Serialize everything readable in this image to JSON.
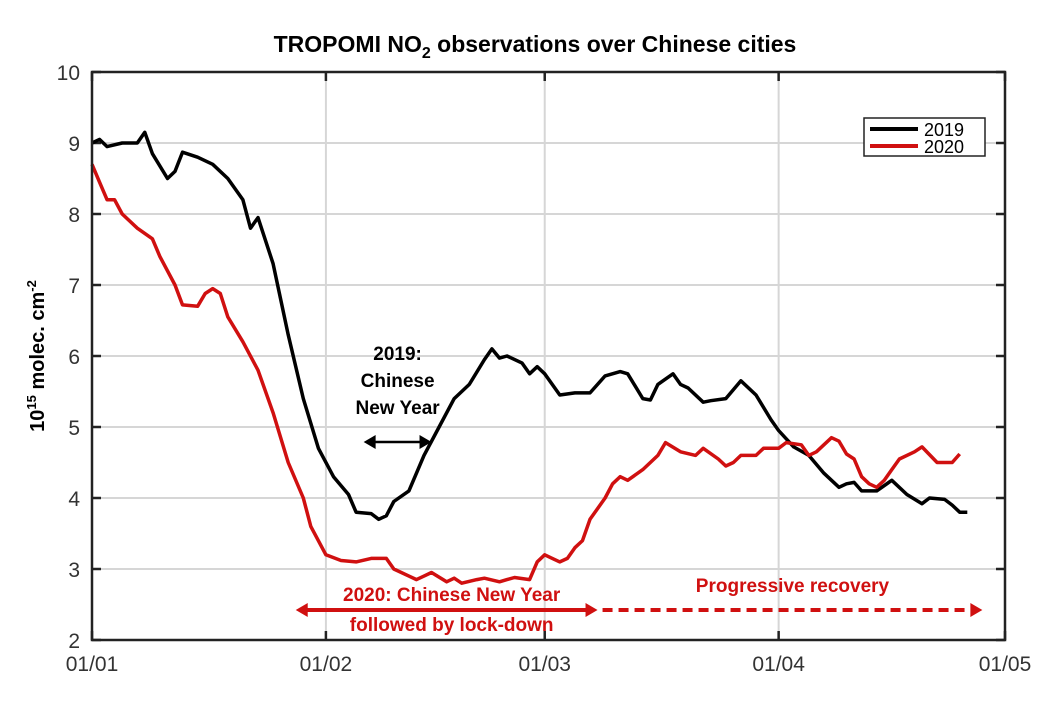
{
  "chart_data": {
    "type": "line",
    "title": "TROPOMI NO",
    "title_sub": "2",
    "title_rest": " observations over Chinese cities",
    "ylabel_base": "10",
    "ylabel_exp": "15",
    "ylabel_mid": " molec. cm",
    "ylabel_exp2": "-2",
    "xlabel": "",
    "ylim": [
      2,
      10
    ],
    "yticks": [
      "2",
      "3",
      "4",
      "5",
      "6",
      "7",
      "8",
      "9",
      "10"
    ],
    "xticks": [
      "01/01",
      "01/02",
      "01/03",
      "01/04",
      "01/05"
    ],
    "grid": true,
    "legend_placement": "top-right",
    "series": [
      {
        "name": "2019",
        "color": "#000000",
        "points": [
          [
            "01/01",
            9.0
          ],
          [
            "02/01",
            9.05
          ],
          [
            "03/01",
            8.95
          ],
          [
            "05/01",
            9.0
          ],
          [
            "07/01",
            9.0
          ],
          [
            "08/01",
            9.15
          ],
          [
            "09/01",
            8.85
          ],
          [
            "11/01",
            8.5
          ],
          [
            "12/01",
            8.6
          ],
          [
            "13/01",
            8.87
          ],
          [
            "15/01",
            8.8
          ],
          [
            "17/01",
            8.7
          ],
          [
            "19/01",
            8.5
          ],
          [
            "21/01",
            8.2
          ],
          [
            "22/01",
            7.8
          ],
          [
            "23/01",
            7.95
          ],
          [
            "25/01",
            7.3
          ],
          [
            "27/01",
            6.3
          ],
          [
            "29/01",
            5.4
          ],
          [
            "31/01",
            4.7
          ],
          [
            "02/02",
            4.3
          ],
          [
            "04/02",
            4.05
          ],
          [
            "05/02",
            3.8
          ],
          [
            "07/02",
            3.78
          ],
          [
            "08/02",
            3.7
          ],
          [
            "09/02",
            3.75
          ],
          [
            "10/02",
            3.95
          ],
          [
            "12/02",
            4.1
          ],
          [
            "14/02",
            4.6
          ],
          [
            "16/02",
            5.0
          ],
          [
            "18/02",
            5.4
          ],
          [
            "20/02",
            5.6
          ],
          [
            "22/02",
            5.95
          ],
          [
            "23/02",
            6.1
          ],
          [
            "24/02",
            5.97
          ],
          [
            "25/02",
            6.0
          ],
          [
            "27/02",
            5.9
          ],
          [
            "28/02",
            5.75
          ],
          [
            "29/02",
            5.85
          ],
          [
            "01/03",
            5.75
          ],
          [
            "03/03",
            5.45
          ],
          [
            "05/03",
            5.48
          ],
          [
            "07/03",
            5.48
          ],
          [
            "09/03",
            5.72
          ],
          [
            "11/03",
            5.78
          ],
          [
            "12/03",
            5.75
          ],
          [
            "14/03",
            5.4
          ],
          [
            "15/03",
            5.38
          ],
          [
            "16/03",
            5.6
          ],
          [
            "18/03",
            5.75
          ],
          [
            "19/03",
            5.6
          ],
          [
            "20/03",
            5.55
          ],
          [
            "22/03",
            5.35
          ],
          [
            "23/03",
            5.37
          ],
          [
            "25/03",
            5.4
          ],
          [
            "27/03",
            5.65
          ],
          [
            "29/03",
            5.45
          ],
          [
            "31/03",
            5.1
          ],
          [
            "01/04",
            4.95
          ],
          [
            "03/04",
            4.72
          ],
          [
            "05/04",
            4.6
          ],
          [
            "07/04",
            4.35
          ],
          [
            "09/04",
            4.15
          ],
          [
            "10/04",
            4.2
          ],
          [
            "11/04",
            4.22
          ],
          [
            "12/04",
            4.1
          ],
          [
            "14/04",
            4.1
          ],
          [
            "16/04",
            4.25
          ],
          [
            "18/04",
            4.05
          ],
          [
            "20/04",
            3.92
          ],
          [
            "21/04",
            4.0
          ],
          [
            "23/04",
            3.98
          ],
          [
            "24/04",
            3.9
          ],
          [
            "25/04",
            3.8
          ],
          [
            "26/04",
            3.8
          ]
        ]
      },
      {
        "name": "2020",
        "color": "#d01010",
        "points": [
          [
            "01/01",
            8.7
          ],
          [
            "02/01",
            8.45
          ],
          [
            "03/01",
            8.2
          ],
          [
            "04/01",
            8.2
          ],
          [
            "05/01",
            8.0
          ],
          [
            "07/01",
            7.8
          ],
          [
            "09/01",
            7.65
          ],
          [
            "10/01",
            7.4
          ],
          [
            "12/01",
            7.0
          ],
          [
            "13/01",
            6.72
          ],
          [
            "15/01",
            6.7
          ],
          [
            "16/01",
            6.88
          ],
          [
            "17/01",
            6.95
          ],
          [
            "18/01",
            6.88
          ],
          [
            "19/01",
            6.55
          ],
          [
            "21/01",
            6.2
          ],
          [
            "23/01",
            5.8
          ],
          [
            "25/01",
            5.2
          ],
          [
            "27/01",
            4.5
          ],
          [
            "29/01",
            4.0
          ],
          [
            "30/01",
            3.6
          ],
          [
            "01/02",
            3.2
          ],
          [
            "03/02",
            3.12
          ],
          [
            "05/02",
            3.1
          ],
          [
            "07/02",
            3.15
          ],
          [
            "09/02",
            3.15
          ],
          [
            "10/02",
            3.0
          ],
          [
            "12/02",
            2.9
          ],
          [
            "13/02",
            2.85
          ],
          [
            "14/02",
            2.9
          ],
          [
            "15/02",
            2.95
          ],
          [
            "17/02",
            2.82
          ],
          [
            "18/02",
            2.87
          ],
          [
            "19/02",
            2.8
          ],
          [
            "21/02",
            2.85
          ],
          [
            "22/02",
            2.87
          ],
          [
            "24/02",
            2.82
          ],
          [
            "25/02",
            2.85
          ],
          [
            "26/02",
            2.88
          ],
          [
            "28/02",
            2.85
          ],
          [
            "29/02",
            3.1
          ],
          [
            "01/03",
            3.2
          ],
          [
            "02/03",
            3.15
          ],
          [
            "03/03",
            3.1
          ],
          [
            "04/03",
            3.15
          ],
          [
            "05/03",
            3.3
          ],
          [
            "06/03",
            3.4
          ],
          [
            "07/03",
            3.7
          ],
          [
            "09/03",
            4.0
          ],
          [
            "10/03",
            4.2
          ],
          [
            "11/03",
            4.3
          ],
          [
            "12/03",
            4.25
          ],
          [
            "14/03",
            4.4
          ],
          [
            "16/03",
            4.6
          ],
          [
            "17/03",
            4.78
          ],
          [
            "19/03",
            4.65
          ],
          [
            "21/03",
            4.6
          ],
          [
            "22/03",
            4.7
          ],
          [
            "24/03",
            4.55
          ],
          [
            "25/03",
            4.45
          ],
          [
            "26/03",
            4.5
          ],
          [
            "27/03",
            4.6
          ],
          [
            "29/03",
            4.6
          ],
          [
            "30/03",
            4.7
          ],
          [
            "01/04",
            4.7
          ],
          [
            "02/04",
            4.78
          ],
          [
            "04/04",
            4.75
          ],
          [
            "05/04",
            4.6
          ],
          [
            "06/04",
            4.65
          ],
          [
            "08/04",
            4.85
          ],
          [
            "09/04",
            4.8
          ],
          [
            "10/04",
            4.62
          ],
          [
            "11/04",
            4.55
          ],
          [
            "12/04",
            4.3
          ],
          [
            "13/04",
            4.2
          ],
          [
            "14/04",
            4.15
          ],
          [
            "15/04",
            4.25
          ],
          [
            "16/04",
            4.4
          ],
          [
            "17/04",
            4.55
          ],
          [
            "19/04",
            4.65
          ],
          [
            "20/04",
            4.72
          ],
          [
            "22/04",
            4.5
          ],
          [
            "24/04",
            4.5
          ],
          [
            "25/04",
            4.62
          ]
        ]
      }
    ],
    "annotations": {
      "cny2019": {
        "lines": [
          "2019:",
          "Chinese",
          "New Year"
        ],
        "color": "#000000",
        "from": "06/02",
        "to": "15/02"
      },
      "cny2020": {
        "lines": [
          "2020: Chinese New Year",
          "followed by lock-down"
        ],
        "color": "#d01010",
        "from": "28/01",
        "to": "08/03"
      },
      "recovery": {
        "text": "Progressive recovery",
        "color": "#d01010",
        "from": "08/03",
        "to": "28/04"
      }
    }
  }
}
